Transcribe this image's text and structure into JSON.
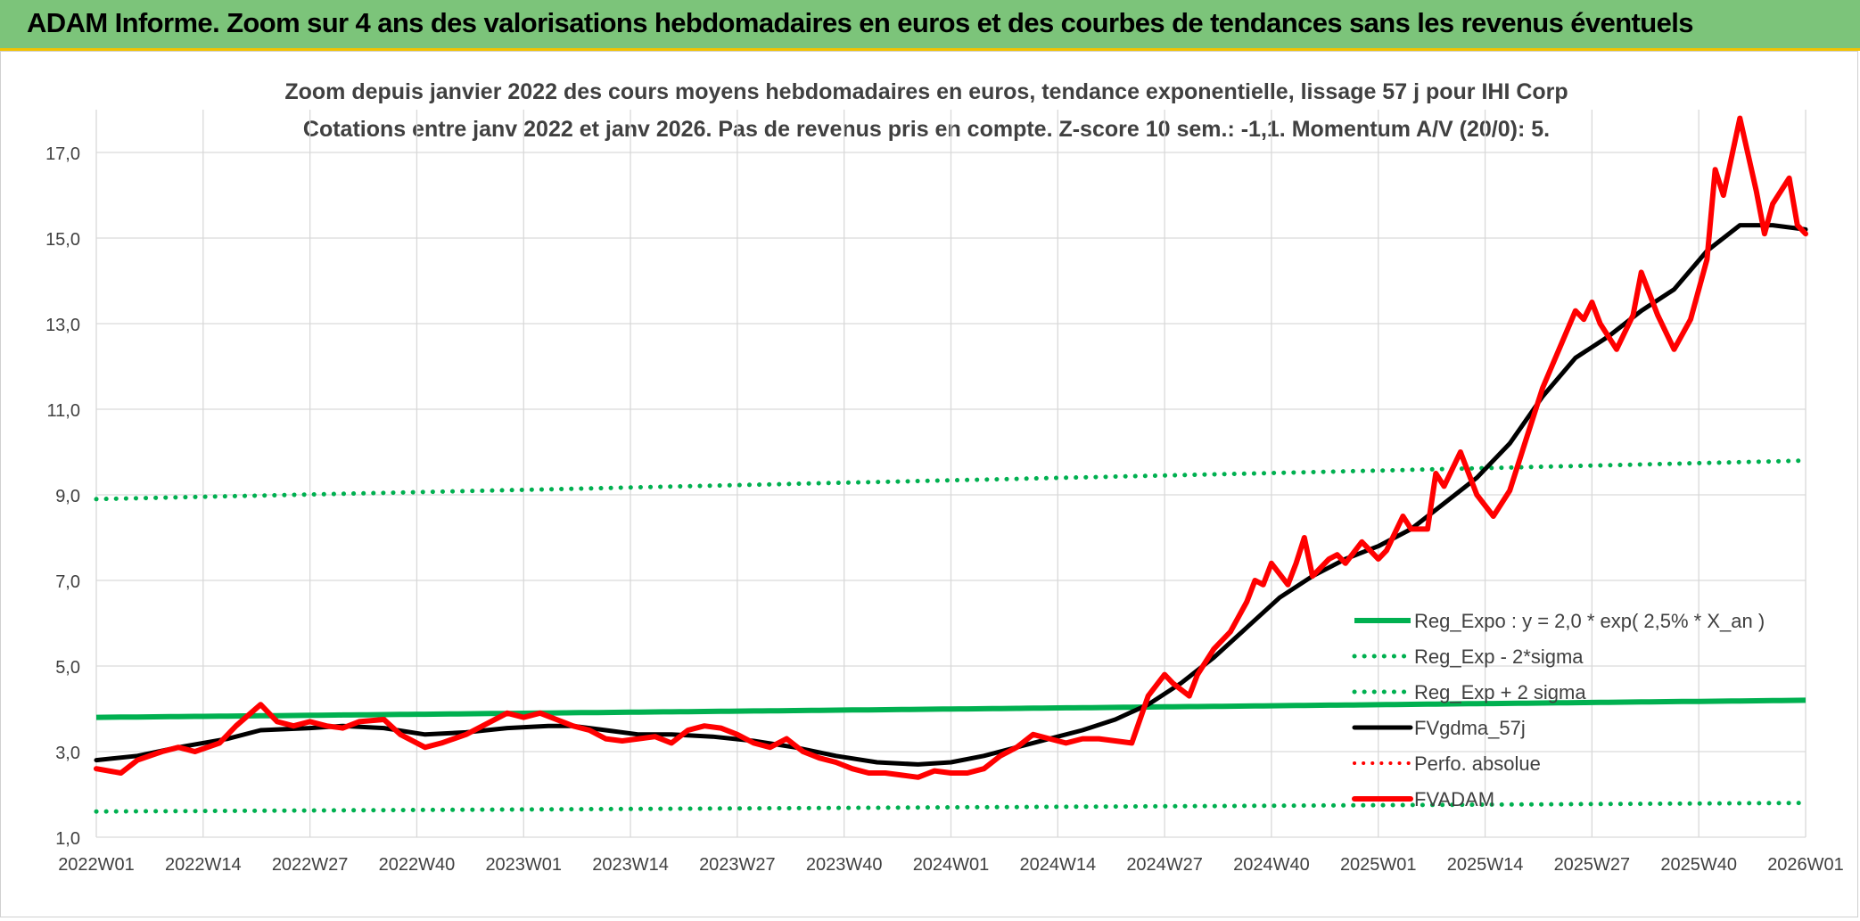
{
  "header": {
    "banner": "ADAM Informe. Zoom sur 4 ans des valorisations hebdomadaires en euros et des courbes de tendances sans les revenus éventuels"
  },
  "colors": {
    "banner_bg": "#7cc47a",
    "green": "#00b050",
    "black": "#000000",
    "red": "#ff0000",
    "grid": "#d9d9d9",
    "text": "#404040"
  },
  "chart_data": {
    "type": "line",
    "title": "Zoom depuis janvier 2022 des cours moyens hebdomadaires en euros, tendance exponentielle, lissage 57 j pour IHI Corp",
    "subtitle": "Cotations entre janv 2022 et janv 2026. Pas de revenus pris en compte. Z-score 10 sem.: -1,1. Momentum A/V (20/0): 5.",
    "xlabel": "",
    "ylabel": "",
    "ylim": [
      1,
      18
    ],
    "xlim": [
      0,
      208
    ],
    "grid": true,
    "legend_position": "bottom-right",
    "x_tick_positions": [
      0,
      13,
      26,
      39,
      52,
      65,
      78,
      91,
      104,
      117,
      130,
      143,
      156,
      169,
      182,
      195,
      208
    ],
    "x_tick_labels": [
      "2022W01",
      "2022W14",
      "2022W27",
      "2022W40",
      "2023W01",
      "2023W14",
      "2023W27",
      "2023W40",
      "2024W01",
      "2024W14",
      "2024W27",
      "2024W40",
      "2025W01",
      "2025W14",
      "2025W27",
      "2025W40",
      "2026W01"
    ],
    "y_ticks": [
      1,
      3,
      5,
      7,
      9,
      11,
      13,
      15,
      17
    ],
    "y_tick_labels": [
      "1,0",
      "3,0",
      "5,0",
      "7,0",
      "9,0",
      "11,0",
      "13,0",
      "15,0",
      "17,0"
    ],
    "series": [
      {
        "name": "Reg_Expo : y = 2,0 * exp( 2,5% *  X_an )",
        "style": "solid-green",
        "x": [
          0,
          208
        ],
        "y": [
          3.8,
          4.2
        ]
      },
      {
        "name": "Reg_Exp - 2*sigma",
        "style": "dotted-green",
        "x": [
          0,
          208
        ],
        "y": [
          1.6,
          1.8
        ]
      },
      {
        "name": "Reg_Exp + 2 sigma",
        "style": "dotted-green",
        "x": [
          0,
          208
        ],
        "y": [
          8.9,
          9.8
        ]
      },
      {
        "name": "FVgdma_57j",
        "style": "solid-black",
        "x": [
          0,
          5,
          10,
          16,
          20,
          26,
          30,
          35,
          40,
          45,
          50,
          55,
          58,
          62,
          66,
          70,
          75,
          80,
          85,
          90,
          95,
          100,
          104,
          108,
          112,
          116,
          120,
          124,
          128,
          132,
          136,
          140,
          144,
          148,
          152,
          156,
          160,
          164,
          168,
          172,
          176,
          180,
          184,
          188,
          192,
          196,
          200,
          204,
          208
        ],
        "y": [
          2.8,
          2.9,
          3.1,
          3.3,
          3.5,
          3.55,
          3.6,
          3.55,
          3.4,
          3.45,
          3.55,
          3.6,
          3.6,
          3.5,
          3.4,
          3.4,
          3.35,
          3.25,
          3.1,
          2.9,
          2.75,
          2.7,
          2.75,
          2.9,
          3.1,
          3.3,
          3.5,
          3.75,
          4.1,
          4.6,
          5.2,
          5.9,
          6.6,
          7.1,
          7.5,
          7.8,
          8.2,
          8.8,
          9.4,
          10.2,
          11.3,
          12.2,
          12.7,
          13.3,
          13.8,
          14.7,
          15.3,
          15.3,
          15.2
        ]
      },
      {
        "name": "Perfo. absolue",
        "style": "dotted-red",
        "x": [],
        "y": []
      },
      {
        "name": "FVADAM",
        "style": "solid-red",
        "x": [
          0,
          3,
          5,
          8,
          10,
          12,
          15,
          17,
          20,
          22,
          24,
          26,
          28,
          30,
          32,
          35,
          37,
          40,
          42,
          45,
          47,
          50,
          52,
          54,
          56,
          58,
          60,
          62,
          64,
          66,
          68,
          70,
          72,
          74,
          76,
          78,
          80,
          82,
          84,
          86,
          88,
          90,
          92,
          94,
          96,
          98,
          100,
          102,
          104,
          106,
          108,
          110,
          112,
          114,
          116,
          118,
          120,
          122,
          124,
          126,
          128,
          130,
          131,
          133,
          134,
          136,
          138,
          140,
          141,
          142,
          143,
          145,
          146,
          147,
          148,
          150,
          151,
          152,
          154,
          156,
          157,
          159,
          160,
          162,
          163,
          164,
          166,
          168,
          170,
          172,
          174,
          176,
          178,
          180,
          181,
          182,
          183,
          185,
          187,
          188,
          190,
          192,
          194,
          196,
          197,
          198,
          200,
          202,
          203,
          204,
          206,
          207,
          208
        ],
        "y": [
          2.6,
          2.5,
          2.8,
          3.0,
          3.1,
          3.0,
          3.2,
          3.6,
          4.1,
          3.7,
          3.6,
          3.7,
          3.6,
          3.55,
          3.7,
          3.75,
          3.4,
          3.1,
          3.2,
          3.4,
          3.6,
          3.9,
          3.8,
          3.9,
          3.75,
          3.6,
          3.5,
          3.3,
          3.25,
          3.3,
          3.35,
          3.2,
          3.5,
          3.6,
          3.55,
          3.4,
          3.2,
          3.1,
          3.3,
          3.0,
          2.85,
          2.75,
          2.6,
          2.5,
          2.5,
          2.45,
          2.4,
          2.55,
          2.5,
          2.5,
          2.6,
          2.9,
          3.1,
          3.4,
          3.3,
          3.2,
          3.3,
          3.3,
          3.25,
          3.2,
          4.3,
          4.8,
          4.6,
          4.3,
          4.8,
          5.4,
          5.8,
          6.5,
          7.0,
          6.9,
          7.4,
          6.9,
          7.4,
          8.0,
          7.1,
          7.5,
          7.6,
          7.4,
          7.9,
          7.5,
          7.7,
          8.5,
          8.2,
          8.2,
          9.5,
          9.2,
          10.0,
          9.0,
          8.5,
          9.1,
          10.3,
          11.5,
          12.4,
          13.3,
          13.1,
          13.5,
          13.0,
          12.4,
          13.2,
          14.2,
          13.2,
          12.4,
          13.1,
          14.5,
          16.6,
          16.0,
          17.8,
          16.1,
          15.1,
          15.8,
          16.4,
          15.3,
          15.1
        ]
      }
    ]
  }
}
